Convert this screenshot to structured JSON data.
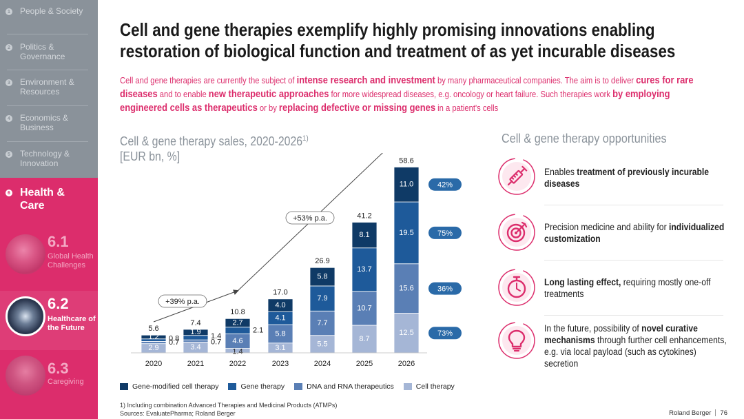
{
  "sidebar": {
    "items": [
      {
        "num": "1",
        "label": "People & Society"
      },
      {
        "num": "2",
        "label": "Politics & Governance"
      },
      {
        "num": "3",
        "label": "Environment & Resources"
      },
      {
        "num": "4",
        "label": "Economics & Business"
      },
      {
        "num": "5",
        "label": "Technology & Innovation"
      }
    ],
    "active": {
      "num": "6",
      "label": "Health & Care"
    },
    "subitems": [
      {
        "num": "6.1",
        "label": "Global Health Challenges"
      },
      {
        "num": "6.2",
        "label": "Healthcare of the Future"
      },
      {
        "num": "6.3",
        "label": "Caregiving"
      }
    ]
  },
  "title": {
    "line1": "Cell and gene therapies exemplify highly promising innovations enabling",
    "line2": "restoration of biological function and treatment of as yet incurable diseases"
  },
  "intro": {
    "t1": "Cell and gene therapies are currently the subject of ",
    "b1": "intense research and investment",
    "t2": " by many pharmaceutical companies. The aim is to deliver ",
    "b2": "cures for rare diseases",
    "t3": " and to enable ",
    "b3": "new therapeutic approaches",
    "t4": " for more widespread diseases, e.g. oncology or heart failure. Such therapies work ",
    "b4": "by employing engineered cells as therapeutics",
    "t5": " or by ",
    "b5": "replacing defective or missing genes",
    "t6": " in a patient's cells"
  },
  "chart_title": {
    "line1": "Cell & gene therapy sales, 2020-2026",
    "sup": "1)",
    "line2": "[EUR bn, %]"
  },
  "chart_data": {
    "type": "bar",
    "stacked": true,
    "categories": [
      "2020",
      "2021",
      "2022",
      "2023",
      "2024",
      "2025",
      "2026"
    ],
    "series": [
      {
        "name": "Cell therapy",
        "color": "#a5b6d6",
        "values": [
          2.9,
          3.4,
          1.4,
          3.1,
          5.5,
          8.7,
          12.5
        ]
      },
      {
        "name": "DNA and RNA therapeutics",
        "color": "#5a7fb5",
        "values": [
          0.7,
          0.7,
          4.6,
          5.8,
          7.7,
          10.7,
          15.6
        ]
      },
      {
        "name": "Gene therapy",
        "color": "#1e5a9a",
        "values": [
          0.8,
          1.4,
          2.1,
          4.1,
          7.9,
          13.7,
          19.5
        ]
      },
      {
        "name": "Gene-modified cell therapy",
        "color": "#0f3a66",
        "values": [
          1.2,
          1.9,
          2.7,
          4.0,
          5.8,
          8.1,
          11.0
        ]
      }
    ],
    "totals": [
      "5.6",
      "7.4",
      "10.8",
      "17.0",
      "26.9",
      "41.2",
      "58.6"
    ],
    "value_labels": [
      [
        "2.9",
        "0.7",
        "0.8",
        "1.2"
      ],
      [
        "3.4",
        "0.7",
        "1.4",
        "1.9"
      ],
      [
        "1.4",
        "4.6",
        "2.1",
        "2.7"
      ],
      [
        "3.1",
        "5.8",
        "4.1",
        "4.0"
      ],
      [
        "5.5",
        "7.7",
        "7.9",
        "5.8"
      ],
      [
        "8.7",
        "10.7",
        "13.7",
        "8.1"
      ],
      [
        "12.5",
        "15.6",
        "19.5",
        "11.0"
      ]
    ],
    "cagr_annotations": [
      "+39% p.a.",
      "+53% p.a."
    ],
    "share_badges": {
      "color": "#2a6aa8",
      "labels": [
        "73%",
        "36%",
        "75%",
        "42%"
      ]
    },
    "ylim": [
      0,
      60
    ],
    "legend_order": [
      "Gene-modified cell therapy",
      "Gene therapy",
      "DNA and RNA therapeutics",
      "Cell therapy"
    ],
    "legend_position": "bottom"
  },
  "footnote": {
    "line1": "1) Including combination Advanced Therapies and Medicinal Products (ATMPs)",
    "line2": "Sources: EvaluatePharma; Roland Berger"
  },
  "brand": {
    "name": "Roland Berger",
    "page": "76"
  },
  "opportunities": {
    "title": "Cell & gene therapy opportunities",
    "items": [
      {
        "icon": "syringe-icon",
        "pre": "Enables ",
        "bold": "treatment of previously incurable diseases",
        "post": ""
      },
      {
        "icon": "target-icon",
        "pre": "Precision medicine and ability for ",
        "bold": "individualized customization",
        "post": ""
      },
      {
        "icon": "stopwatch-icon",
        "pre": "",
        "bold": "Long lasting effect,",
        "post": " requiring mostly one-off treatments"
      },
      {
        "icon": "lightbulb-icon",
        "pre": "In the future, possibility of ",
        "bold": "novel curative mechanisms",
        "post": " through further cell enhancements, e.g. via local payload (such as cytokines) secretion"
      }
    ]
  },
  "colors": {
    "accent": "#dc2d6c",
    "sidebar": "#8a929a",
    "muted": "#8a929a"
  }
}
